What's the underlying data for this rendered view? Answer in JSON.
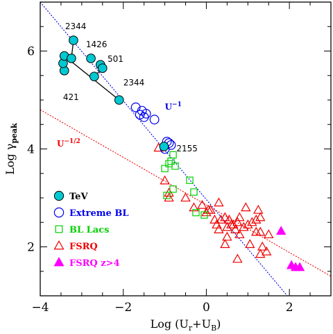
{
  "chart_data": {
    "type": "scatter",
    "xlabel": "Log (U_r+U_B)",
    "ylabel": "Log γ_peak",
    "xlim": [
      -4,
      3
    ],
    "ylim": [
      1,
      7
    ],
    "xticks": [
      -4,
      -2,
      0,
      2
    ],
    "yticks": [
      2,
      4,
      6
    ],
    "grid": false,
    "legend_position": "bottom-left",
    "colors": {
      "tev": "#00c8d2",
      "extreme_bl": "#0000ee",
      "bl_lacs": "#00d000",
      "fsrq": "#ee0000",
      "fsrq_z4": "#ff00ff",
      "u_minus_1_line": "#0000dd",
      "u_minus_half_line": "#ee0000"
    },
    "series": [
      {
        "name": "TeV",
        "marker": "filled-circle",
        "points": [
          [
            -3.42,
            5.6
          ],
          [
            -3.45,
            5.75
          ],
          [
            -3.42,
            5.9
          ],
          [
            -3.25,
            5.85
          ],
          [
            -3.2,
            6.22
          ],
          [
            -2.78,
            5.85
          ],
          [
            -2.55,
            5.72
          ],
          [
            -2.5,
            5.65
          ],
          [
            -2.7,
            5.48
          ],
          [
            -2.1,
            5.0
          ],
          [
            -1.02,
            4.05
          ]
        ]
      },
      {
        "name": "Extreme BL",
        "marker": "open-circle",
        "points": [
          [
            -1.7,
            4.85
          ],
          [
            -1.55,
            4.78
          ],
          [
            -1.6,
            4.7
          ],
          [
            -1.45,
            4.72
          ],
          [
            -1.5,
            4.65
          ],
          [
            -1.25,
            4.6
          ],
          [
            -0.95,
            4.15
          ],
          [
            -0.85,
            4.08
          ],
          [
            -0.9,
            4.12
          ],
          [
            -1.0,
            4.0
          ]
        ]
      },
      {
        "name": "BL Lacs",
        "marker": "open-square",
        "points": [
          [
            -1.0,
            3.6
          ],
          [
            -0.9,
            3.7
          ],
          [
            -0.85,
            3.75
          ],
          [
            -0.8,
            3.88
          ],
          [
            -0.75,
            3.65
          ],
          [
            -0.4,
            3.36
          ],
          [
            -0.3,
            3.12
          ],
          [
            -0.8,
            3.18
          ],
          [
            -0.95,
            3.05
          ],
          [
            -0.25,
            2.7
          ],
          [
            -0.05,
            2.65
          ]
        ]
      },
      {
        "name": "FSRQ",
        "marker": "open-triangle",
        "points": [
          [
            -1.15,
            4.02
          ],
          [
            -1.0,
            3.35
          ],
          [
            -0.9,
            3.1
          ],
          [
            -0.9,
            3.0
          ],
          [
            -0.5,
            3.0
          ],
          [
            -0.3,
            2.8
          ],
          [
            -0.1,
            2.85
          ],
          [
            0.0,
            2.7
          ],
          [
            0.1,
            2.75
          ],
          [
            0.2,
            2.55
          ],
          [
            0.3,
            2.9
          ],
          [
            0.25,
            2.45
          ],
          [
            0.3,
            2.35
          ],
          [
            0.35,
            2.55
          ],
          [
            0.45,
            2.6
          ],
          [
            0.5,
            2.4
          ],
          [
            0.5,
            2.2
          ],
          [
            0.6,
            2.45
          ],
          [
            0.55,
            2.55
          ],
          [
            0.65,
            2.45
          ],
          [
            0.8,
            2.6
          ],
          [
            0.75,
            2.5
          ],
          [
            0.7,
            2.35
          ],
          [
            0.8,
            2.25
          ],
          [
            0.9,
            2.4
          ],
          [
            1.0,
            2.45
          ],
          [
            1.05,
            2.05
          ],
          [
            1.2,
            2.55
          ],
          [
            1.25,
            2.75
          ],
          [
            1.2,
            2.3
          ],
          [
            1.3,
            2.6
          ],
          [
            1.35,
            2.0
          ],
          [
            1.5,
            2.25
          ],
          [
            1.45,
            1.9
          ],
          [
            0.95,
            2.8
          ],
          [
            1.3,
            2.3
          ],
          [
            1.1,
            2.5
          ],
          [
            0.75,
            1.75
          ],
          [
            0.45,
            2.05
          ],
          [
            0.05,
            2.75
          ],
          [
            1.3,
            1.85
          ]
        ]
      },
      {
        "name": "FSRQ z>4",
        "marker": "filled-triangle",
        "points": [
          [
            1.8,
            2.32
          ],
          [
            2.05,
            1.62
          ],
          [
            2.15,
            1.58
          ],
          [
            2.25,
            1.58
          ]
        ]
      }
    ],
    "lines": [
      {
        "name": "U^-1",
        "label_main": "U",
        "label_exp": "−1",
        "from": [
          -4.0,
          7.0
        ],
        "to": [
          1.95,
          1.0
        ],
        "dash": "dotted"
      },
      {
        "name": "U^-1/2",
        "label_main": "U",
        "label_exp": "−1/2",
        "from": [
          -4.0,
          4.8
        ],
        "to": [
          3.0,
          1.4
        ],
        "dash": "dotted"
      }
    ],
    "tev_connections": [
      {
        "label": "2344",
        "path": [
          [
            -3.42,
            5.6
          ],
          [
            -3.45,
            5.75
          ],
          [
            -3.42,
            5.9
          ],
          [
            -3.25,
            5.85
          ],
          [
            -3.2,
            6.22
          ]
        ]
      },
      {
        "label": "501",
        "path": [
          [
            -2.55,
            5.72
          ],
          [
            -2.5,
            5.65
          ],
          [
            -2.7,
            5.48
          ]
        ]
      },
      {
        "label": "2344",
        "path": [
          [
            -3.42,
            5.9
          ],
          [
            -2.1,
            5.0
          ]
        ]
      }
    ],
    "annotations": [
      {
        "text": "2344",
        "at": [
          -3.4,
          6.45
        ]
      },
      {
        "text": "1426",
        "at": [
          -2.9,
          6.08
        ]
      },
      {
        "text": "501",
        "at": [
          -2.38,
          5.78
        ]
      },
      {
        "text": "421",
        "at": [
          -3.45,
          5.0
        ]
      },
      {
        "text": "2344",
        "at": [
          -2.0,
          5.3
        ]
      },
      {
        "text": "2155",
        "at": [
          -0.72,
          3.95
        ]
      }
    ],
    "legend": [
      {
        "label": "TeV",
        "series": 0
      },
      {
        "label": "Extreme BL",
        "series": 1
      },
      {
        "label": "BL Lacs",
        "series": 2
      },
      {
        "label": "FSRQ",
        "series": 3
      },
      {
        "label": "FSRQ z>4",
        "series": 4
      }
    ]
  }
}
